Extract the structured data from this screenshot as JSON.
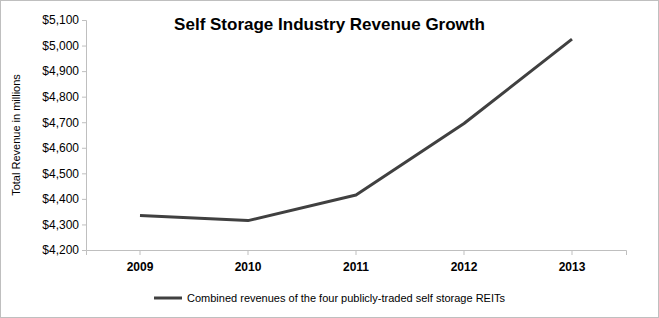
{
  "chart_data": {
    "type": "line",
    "title": "Self Storage Industry Revenue Growth",
    "y_label": "Total Revenue in millions",
    "categories": [
      "2009",
      "2010",
      "2011",
      "2012",
      "2013"
    ],
    "series": [
      {
        "name": "Combined revenues of the four publicly-traded self storage REITs",
        "color": "#404040",
        "values": [
          4335,
          4315,
          4415,
          4695,
          5025
        ]
      }
    ],
    "ylim": [
      4200,
      5100
    ],
    "yticks": [
      {
        "value": 4200,
        "label": "$4,200"
      },
      {
        "value": 4300,
        "label": "$4,300"
      },
      {
        "value": 4400,
        "label": "$4,400"
      },
      {
        "value": 4500,
        "label": "$4,500"
      },
      {
        "value": 4600,
        "label": "$4,600"
      },
      {
        "value": 4700,
        "label": "$4,700"
      },
      {
        "value": 4800,
        "label": "$4,800"
      },
      {
        "value": 4900,
        "label": "$4,900"
      },
      {
        "value": 5000,
        "label": "$5,000"
      },
      {
        "value": 5100,
        "label": "$5,100"
      }
    ],
    "grid": false,
    "legend": "bottom"
  }
}
